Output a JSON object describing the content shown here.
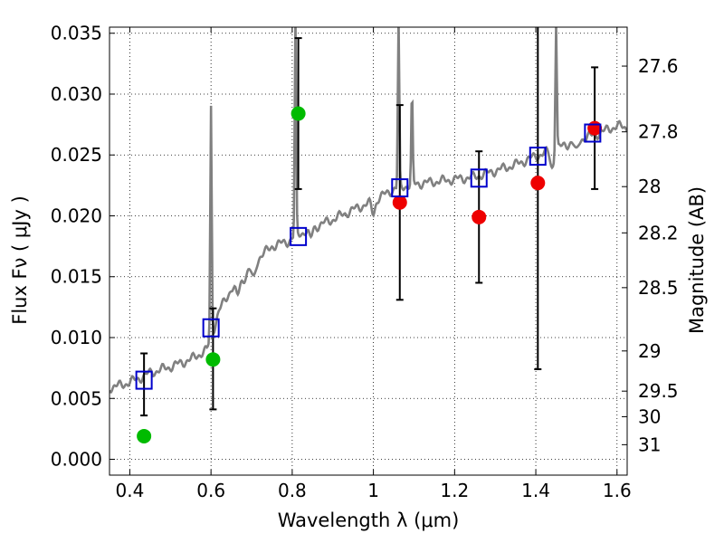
{
  "chart_data": {
    "type": "scatter",
    "xlabel": "Wavelength  λ (μm)",
    "ylabel_left": "Flux  Fν  ( μJy )",
    "ylabel_right": "Magnitude (AB)",
    "xlim": [
      0.35,
      1.625
    ],
    "ylim": [
      -0.0013,
      0.0355
    ],
    "x_ticks": [
      0.4,
      0.6,
      0.8,
      1.0,
      1.2,
      1.4,
      1.6
    ],
    "x_tick_labels": [
      "0.4",
      "0.6",
      "0.8",
      "1",
      "1.2",
      "1.4",
      "1.6"
    ],
    "y_ticks": [
      0.0,
      0.005,
      0.01,
      0.015,
      0.02,
      0.025,
      0.03,
      0.035
    ],
    "y_tick_labels": [
      "0.000",
      "0.005",
      "0.010",
      "0.015",
      "0.020",
      "0.025",
      "0.030",
      "0.035"
    ],
    "right_ticks": [
      {
        "label": "27.6",
        "flux": 0.0323
      },
      {
        "label": "27.8",
        "flux": 0.0269
      },
      {
        "label": "28",
        "flux": 0.0224
      },
      {
        "label": "28.2",
        "flux": 0.0186
      },
      {
        "label": "28.5",
        "flux": 0.0141
      },
      {
        "label": "29",
        "flux": 0.0089
      },
      {
        "label": "29.5",
        "flux": 0.0056
      },
      {
        "label": "30",
        "flux": 0.0035
      },
      {
        "label": "31",
        "flux": 0.0012
      }
    ],
    "grid": true,
    "colors": {
      "spectrum": "#808080",
      "model_squares": "#0000cc",
      "green_points": "#00bb00",
      "red_points": "#ee0000",
      "error_bars": "#000000"
    },
    "model_spectrum": {
      "continuum_points": [
        [
          0.35,
          0.0059
        ],
        [
          0.38,
          0.0061
        ],
        [
          0.42,
          0.0066
        ],
        [
          0.45,
          0.0071
        ],
        [
          0.5,
          0.0076
        ],
        [
          0.55,
          0.0082
        ],
        [
          0.59,
          0.009
        ],
        [
          0.605,
          0.0105
        ],
        [
          0.62,
          0.0122
        ],
        [
          0.65,
          0.014
        ],
        [
          0.68,
          0.0148
        ],
        [
          0.7,
          0.0158
        ],
        [
          0.72,
          0.0166
        ],
        [
          0.75,
          0.0175
        ],
        [
          0.79,
          0.0179
        ],
        [
          0.81,
          0.0184
        ],
        [
          0.85,
          0.019
        ],
        [
          0.9,
          0.0197
        ],
        [
          0.95,
          0.0205
        ],
        [
          1.0,
          0.0212
        ],
        [
          1.05,
          0.0222
        ],
        [
          1.1,
          0.0226
        ],
        [
          1.15,
          0.0228
        ],
        [
          1.2,
          0.023
        ],
        [
          1.25,
          0.0232
        ],
        [
          1.3,
          0.0237
        ],
        [
          1.35,
          0.0242
        ],
        [
          1.4,
          0.0249
        ],
        [
          1.45,
          0.0255
        ],
        [
          1.5,
          0.0262
        ],
        [
          1.55,
          0.0267
        ],
        [
          1.6,
          0.0274
        ],
        [
          1.625,
          0.0272
        ]
      ],
      "emission_lines": [
        {
          "x": 0.6,
          "peak": 0.0289
        },
        {
          "x": 0.808,
          "peak": 0.036
        },
        {
          "x": 1.062,
          "peak": 0.036
        },
        {
          "x": 1.095,
          "peak": 0.03
        },
        {
          "x": 1.45,
          "peak": 0.036
        }
      ],
      "absorption_dips": [
        {
          "x": 0.665,
          "depth": 0.001
        },
        {
          "x": 0.705,
          "depth": 0.0012
        },
        {
          "x": 0.845,
          "depth": 0.0008
        },
        {
          "x": 1.0,
          "depth": 0.001
        },
        {
          "x": 1.44,
          "depth": 0.0014
        },
        {
          "x": 1.5,
          "depth": 0.001
        }
      ]
    },
    "model_points": [
      {
        "x": 0.435,
        "y": 0.0065
      },
      {
        "x": 0.6,
        "y": 0.0108
      },
      {
        "x": 0.815,
        "y": 0.0183
      },
      {
        "x": 1.065,
        "y": 0.0223
      },
      {
        "x": 1.26,
        "y": 0.0231
      },
      {
        "x": 1.405,
        "y": 0.0249
      },
      {
        "x": 1.54,
        "y": 0.0268
      }
    ],
    "observed_points": [
      {
        "x": 0.435,
        "y": 0.0019,
        "err_low": 0.0036,
        "err_high": 0.0087,
        "color": "green"
      },
      {
        "x": 0.605,
        "y": 0.0082,
        "err_low": 0.0041,
        "err_high": 0.0124,
        "color": "green"
      },
      {
        "x": 0.815,
        "y": 0.0284,
        "err_low": 0.0222,
        "err_high": 0.0346,
        "color": "green"
      },
      {
        "x": 1.065,
        "y": 0.0211,
        "err_low": 0.0131,
        "err_high": 0.0291,
        "color": "red"
      },
      {
        "x": 1.26,
        "y": 0.0199,
        "err_low": 0.0145,
        "err_high": 0.0253,
        "color": "red"
      },
      {
        "x": 1.405,
        "y": 0.0227,
        "err_low": 0.0074,
        "err_high": 0.0355,
        "color": "red"
      },
      {
        "x": 1.545,
        "y": 0.0272,
        "err_low": 0.0222,
        "err_high": 0.0322,
        "color": "red"
      }
    ]
  }
}
